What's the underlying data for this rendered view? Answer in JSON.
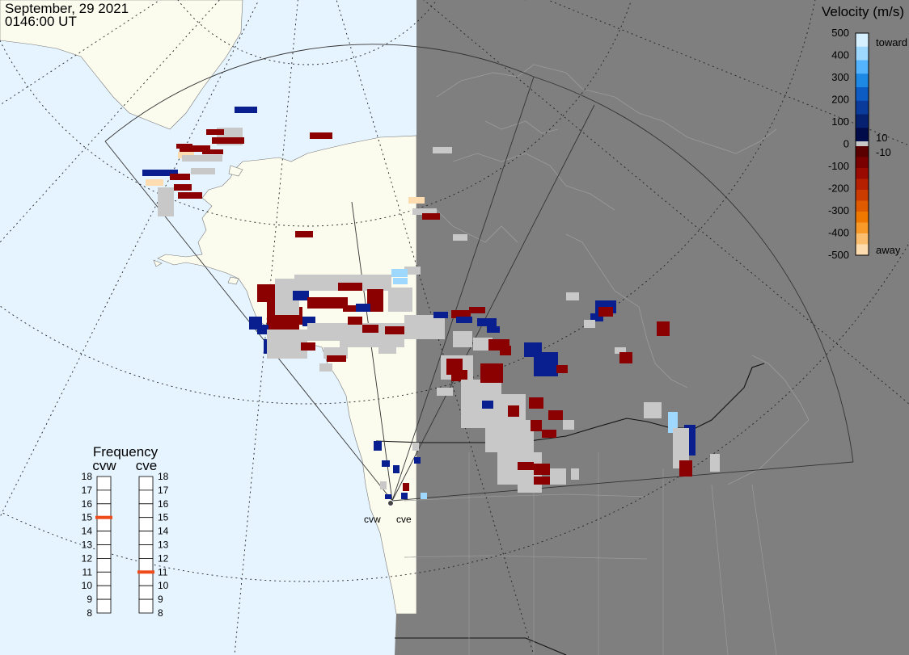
{
  "header": {
    "date": "September, 29 2021",
    "time": "0146:00 UT"
  },
  "colorbar": {
    "title": "Velocity (m/s)",
    "ticks": [
      "500",
      "400",
      "300",
      "200",
      "100",
      "0",
      "-100",
      "-200",
      "-300",
      "-400",
      "-500"
    ],
    "label_toward": "toward",
    "label_away": "away",
    "label_pos_threshold": "10",
    "label_neg_threshold": "-10",
    "colors_toward": [
      "#d6f0ff",
      "#9fd8ff",
      "#55b4ff",
      "#1e88e5",
      "#0d5cc4",
      "#0a3a9a",
      "#06216f",
      "#020b4a"
    ],
    "colors_away": [
      "#5a0000",
      "#7a0000",
      "#9a0a00",
      "#b42000",
      "#cc3c00",
      "#e05a00",
      "#ee7800",
      "#f79a2a",
      "#fbbe6e",
      "#fddcb0"
    ]
  },
  "frequency": {
    "title": "Frequency",
    "radars": [
      {
        "name": "cvw",
        "value": 15
      },
      {
        "name": "cve",
        "value": 11
      }
    ],
    "scale": [
      "18",
      "17",
      "16",
      "15",
      "14",
      "13",
      "12",
      "11",
      "10",
      "9",
      "8"
    ]
  },
  "radar_sites": {
    "west_label": "cvw",
    "east_label": "cve"
  },
  "map_colors": {
    "ocean": "#e6f4ff",
    "land": "#fbfbee",
    "night": "#7f7f7f",
    "ground_scatter": "#c8c8c8"
  }
}
